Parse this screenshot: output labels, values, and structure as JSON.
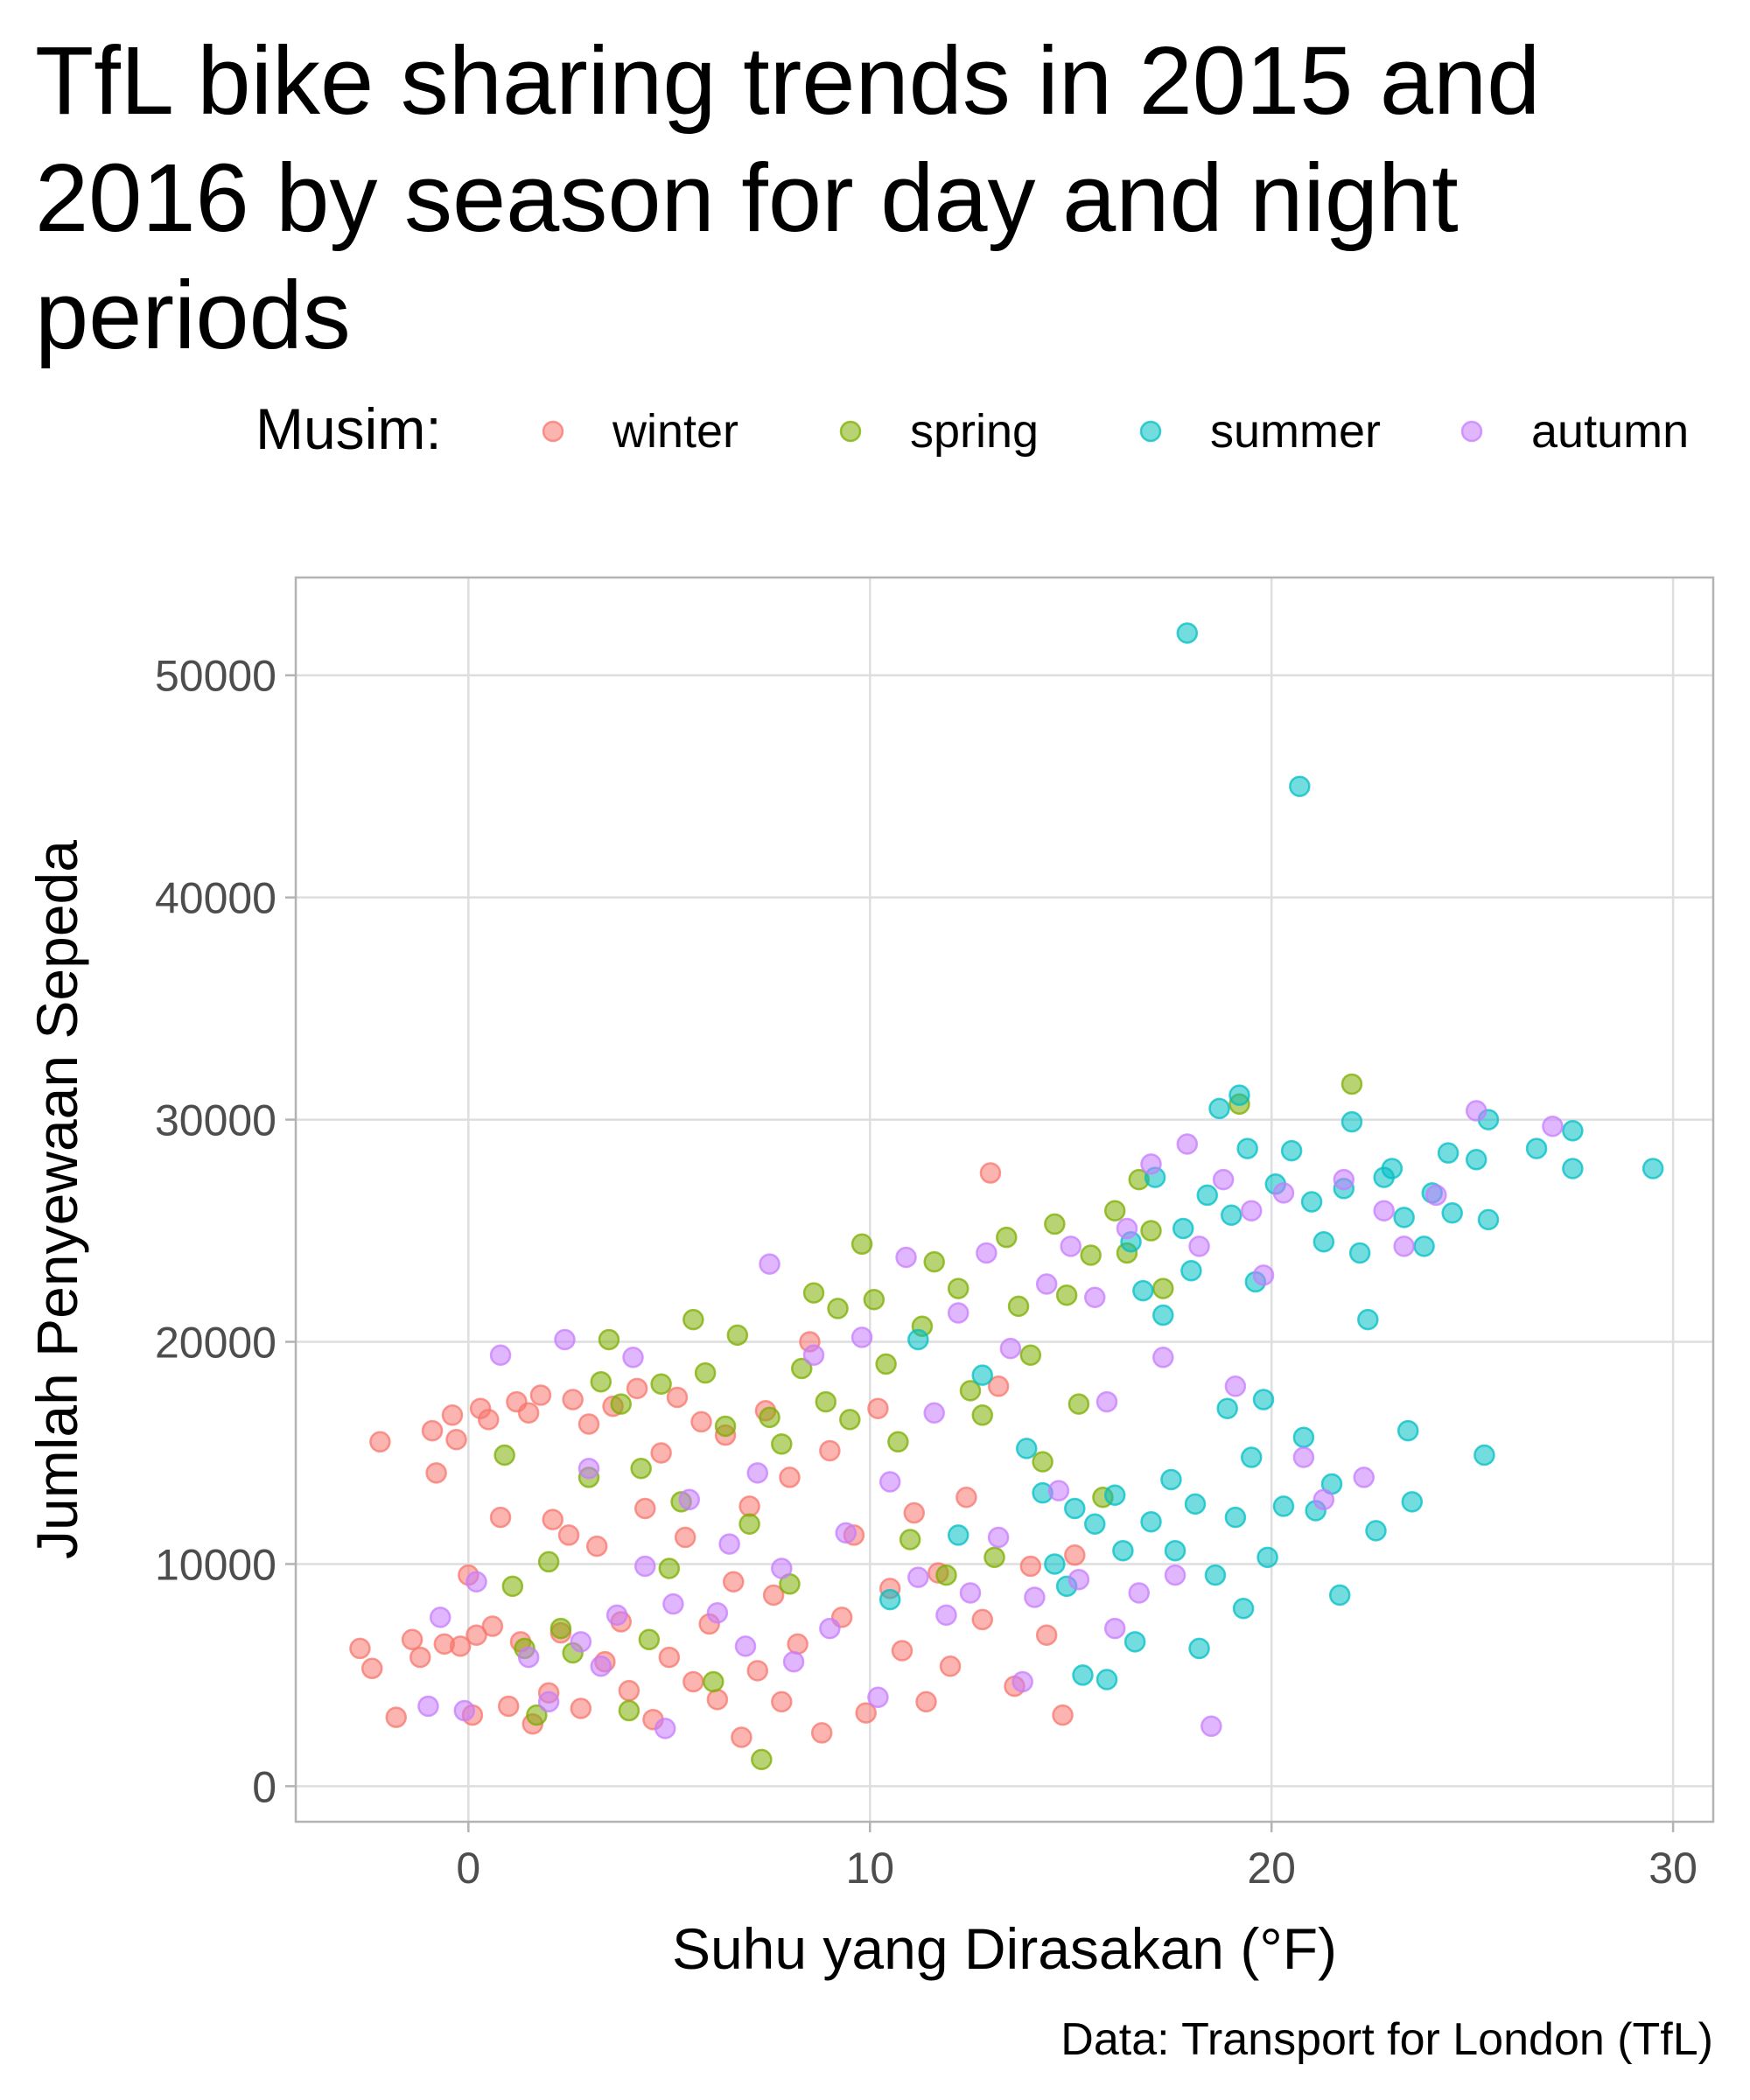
{
  "chart_data": {
    "type": "scatter",
    "title": "TfL bike sharing trends in 2015 and 2016 by season for day and night periods",
    "xlabel": "Suhu yang Dirasakan (°F)",
    "ylabel": "Jumlah Penyewaan Sepeda",
    "caption": "Data: Transport for London (TfL)",
    "legend_title": "Musim:",
    "legend_position": "top",
    "grid": true,
    "xlim": [
      -4.3,
      31.0
    ],
    "ylim": [
      -1600,
      54400
    ],
    "x_ticks": [
      0,
      10,
      20,
      30
    ],
    "y_ticks": [
      0,
      10000,
      20000,
      30000,
      40000,
      50000
    ],
    "x_tick_labels": [
      "0",
      "10",
      "20",
      "30"
    ],
    "y_tick_labels": [
      "0",
      "10000",
      "20000",
      "30000",
      "40000",
      "50000"
    ],
    "series": [
      {
        "name": "winter",
        "color": "#F8766D",
        "points": [
          [
            -2.7,
            6200
          ],
          [
            -2.4,
            5300
          ],
          [
            -2.2,
            15500
          ],
          [
            -1.8,
            3100
          ],
          [
            -1.4,
            6600
          ],
          [
            -1.2,
            5800
          ],
          [
            -0.9,
            16000
          ],
          [
            -0.8,
            14100
          ],
          [
            -0.6,
            6400
          ],
          [
            -0.4,
            16700
          ],
          [
            -0.3,
            15600
          ],
          [
            -0.2,
            6300
          ],
          [
            0.0,
            9500
          ],
          [
            0.1,
            3200
          ],
          [
            0.2,
            6800
          ],
          [
            0.3,
            17000
          ],
          [
            0.5,
            16500
          ],
          [
            0.6,
            7200
          ],
          [
            0.8,
            12100
          ],
          [
            1.0,
            3600
          ],
          [
            1.2,
            17300
          ],
          [
            1.3,
            6500
          ],
          [
            1.5,
            16800
          ],
          [
            1.6,
            2800
          ],
          [
            1.8,
            17600
          ],
          [
            2.0,
            4200
          ],
          [
            2.1,
            12000
          ],
          [
            2.3,
            6900
          ],
          [
            2.5,
            11300
          ],
          [
            2.6,
            17400
          ],
          [
            2.8,
            3500
          ],
          [
            3.0,
            16300
          ],
          [
            3.2,
            10800
          ],
          [
            3.4,
            5600
          ],
          [
            3.6,
            17100
          ],
          [
            3.8,
            7400
          ],
          [
            4.0,
            4300
          ],
          [
            4.2,
            17900
          ],
          [
            4.4,
            12500
          ],
          [
            4.6,
            3000
          ],
          [
            4.8,
            15000
          ],
          [
            5.0,
            5800
          ],
          [
            5.2,
            17500
          ],
          [
            5.4,
            11200
          ],
          [
            5.6,
            4700
          ],
          [
            5.8,
            16400
          ],
          [
            6.0,
            7300
          ],
          [
            6.2,
            3900
          ],
          [
            6.4,
            15800
          ],
          [
            6.6,
            9200
          ],
          [
            6.8,
            2200
          ],
          [
            7.0,
            12600
          ],
          [
            7.2,
            5200
          ],
          [
            7.4,
            16900
          ],
          [
            7.6,
            8600
          ],
          [
            7.8,
            3800
          ],
          [
            8.0,
            13900
          ],
          [
            8.2,
            6400
          ],
          [
            8.5,
            20000
          ],
          [
            8.8,
            2400
          ],
          [
            9.0,
            15100
          ],
          [
            9.3,
            7600
          ],
          [
            9.6,
            11300
          ],
          [
            9.9,
            3300
          ],
          [
            10.2,
            17000
          ],
          [
            10.5,
            8900
          ],
          [
            10.8,
            6100
          ],
          [
            11.1,
            12300
          ],
          [
            11.4,
            3800
          ],
          [
            11.7,
            9600
          ],
          [
            12.0,
            5400
          ],
          [
            12.4,
            13000
          ],
          [
            12.8,
            7500
          ],
          [
            13.0,
            27600
          ],
          [
            13.2,
            18000
          ],
          [
            13.6,
            4500
          ],
          [
            14.0,
            9900
          ],
          [
            14.4,
            6800
          ],
          [
            14.8,
            3200
          ],
          [
            15.1,
            10400
          ]
        ]
      },
      {
        "name": "spring",
        "color": "#7CAE00",
        "points": [
          [
            0.9,
            14900
          ],
          [
            1.1,
            9000
          ],
          [
            1.4,
            6200
          ],
          [
            1.7,
            3200
          ],
          [
            2.0,
            10100
          ],
          [
            2.3,
            7100
          ],
          [
            2.6,
            6000
          ],
          [
            3.0,
            13900
          ],
          [
            3.3,
            18200
          ],
          [
            3.5,
            20100
          ],
          [
            3.8,
            17200
          ],
          [
            4.0,
            3400
          ],
          [
            4.3,
            14300
          ],
          [
            4.5,
            6600
          ],
          [
            4.8,
            18100
          ],
          [
            5.0,
            9800
          ],
          [
            5.3,
            12800
          ],
          [
            5.6,
            21000
          ],
          [
            5.9,
            18600
          ],
          [
            6.1,
            4700
          ],
          [
            6.4,
            16200
          ],
          [
            6.7,
            20300
          ],
          [
            7.0,
            11800
          ],
          [
            7.3,
            1200
          ],
          [
            7.5,
            16600
          ],
          [
            7.8,
            15400
          ],
          [
            8.0,
            9100
          ],
          [
            8.3,
            18800
          ],
          [
            8.6,
            22200
          ],
          [
            8.9,
            17300
          ],
          [
            9.2,
            21500
          ],
          [
            9.5,
            16500
          ],
          [
            9.8,
            24400
          ],
          [
            10.1,
            21900
          ],
          [
            10.4,
            19000
          ],
          [
            10.7,
            15500
          ],
          [
            11.0,
            11100
          ],
          [
            11.3,
            20700
          ],
          [
            11.6,
            23600
          ],
          [
            11.9,
            9500
          ],
          [
            12.2,
            22400
          ],
          [
            12.5,
            17800
          ],
          [
            12.8,
            16700
          ],
          [
            13.1,
            10300
          ],
          [
            13.4,
            24700
          ],
          [
            13.7,
            21600
          ],
          [
            14.0,
            19400
          ],
          [
            14.3,
            14600
          ],
          [
            14.6,
            25300
          ],
          [
            14.9,
            22100
          ],
          [
            15.2,
            17200
          ],
          [
            15.5,
            23900
          ],
          [
            15.8,
            13000
          ],
          [
            16.1,
            25900
          ],
          [
            16.4,
            24000
          ],
          [
            16.7,
            27300
          ],
          [
            17.0,
            25000
          ],
          [
            17.3,
            22400
          ],
          [
            19.2,
            30700
          ],
          [
            22.0,
            31600
          ]
        ]
      },
      {
        "name": "summer",
        "color": "#00BFC4",
        "points": [
          [
            10.5,
            8400
          ],
          [
            11.2,
            20100
          ],
          [
            12.2,
            11300
          ],
          [
            12.8,
            18500
          ],
          [
            13.9,
            15200
          ],
          [
            14.3,
            13200
          ],
          [
            14.6,
            10000
          ],
          [
            14.9,
            9000
          ],
          [
            15.1,
            12500
          ],
          [
            15.3,
            5000
          ],
          [
            15.6,
            11800
          ],
          [
            15.9,
            4800
          ],
          [
            16.1,
            13100
          ],
          [
            16.3,
            10600
          ],
          [
            16.5,
            24500
          ],
          [
            16.6,
            6500
          ],
          [
            16.8,
            22300
          ],
          [
            17.0,
            11900
          ],
          [
            17.1,
            27400
          ],
          [
            17.3,
            21200
          ],
          [
            17.5,
            13800
          ],
          [
            17.6,
            10600
          ],
          [
            17.8,
            25100
          ],
          [
            17.9,
            51900
          ],
          [
            18.0,
            23200
          ],
          [
            18.1,
            12700
          ],
          [
            18.2,
            6200
          ],
          [
            18.4,
            26600
          ],
          [
            18.6,
            9500
          ],
          [
            18.7,
            30500
          ],
          [
            18.9,
            17000
          ],
          [
            19.0,
            25700
          ],
          [
            19.1,
            12100
          ],
          [
            19.2,
            31100
          ],
          [
            19.3,
            8000
          ],
          [
            19.4,
            28700
          ],
          [
            19.5,
            14800
          ],
          [
            19.6,
            22700
          ],
          [
            19.8,
            17400
          ],
          [
            19.9,
            10300
          ],
          [
            20.1,
            27100
          ],
          [
            20.3,
            12600
          ],
          [
            20.5,
            28600
          ],
          [
            20.7,
            45000
          ],
          [
            20.8,
            15700
          ],
          [
            21.0,
            26300
          ],
          [
            21.1,
            12400
          ],
          [
            21.3,
            24500
          ],
          [
            21.5,
            13600
          ],
          [
            21.7,
            8600
          ],
          [
            21.8,
            26900
          ],
          [
            22.0,
            29900
          ],
          [
            22.2,
            24000
          ],
          [
            22.4,
            21000
          ],
          [
            22.6,
            11500
          ],
          [
            22.8,
            27400
          ],
          [
            23.0,
            27800
          ],
          [
            23.3,
            25600
          ],
          [
            23.4,
            16000
          ],
          [
            23.5,
            12800
          ],
          [
            23.8,
            24300
          ],
          [
            24.0,
            26700
          ],
          [
            24.4,
            28500
          ],
          [
            24.5,
            25800
          ],
          [
            25.1,
            28200
          ],
          [
            25.3,
            14900
          ],
          [
            25.4,
            30000
          ],
          [
            25.4,
            25500
          ],
          [
            26.6,
            28700
          ],
          [
            27.5,
            29500
          ],
          [
            27.5,
            27800
          ],
          [
            29.5,
            27800
          ]
        ]
      },
      {
        "name": "autumn",
        "color": "#C77CFF",
        "points": [
          [
            -1.0,
            3600
          ],
          [
            -0.7,
            7600
          ],
          [
            -0.1,
            3400
          ],
          [
            0.2,
            9200
          ],
          [
            0.8,
            19400
          ],
          [
            1.5,
            5800
          ],
          [
            2.0,
            3800
          ],
          [
            2.4,
            20100
          ],
          [
            2.8,
            6500
          ],
          [
            3.0,
            14300
          ],
          [
            3.3,
            5400
          ],
          [
            3.7,
            7700
          ],
          [
            4.1,
            19300
          ],
          [
            4.4,
            9900
          ],
          [
            4.9,
            2600
          ],
          [
            5.1,
            8200
          ],
          [
            5.5,
            12900
          ],
          [
            6.2,
            7800
          ],
          [
            6.5,
            10900
          ],
          [
            6.9,
            6300
          ],
          [
            7.2,
            14100
          ],
          [
            7.5,
            23500
          ],
          [
            7.8,
            9800
          ],
          [
            8.1,
            5600
          ],
          [
            8.6,
            19400
          ],
          [
            9.0,
            7100
          ],
          [
            9.4,
            11400
          ],
          [
            9.8,
            20200
          ],
          [
            10.2,
            4000
          ],
          [
            10.5,
            13700
          ],
          [
            10.9,
            23800
          ],
          [
            11.2,
            9400
          ],
          [
            11.6,
            16800
          ],
          [
            11.9,
            7700
          ],
          [
            12.2,
            21300
          ],
          [
            12.5,
            8700
          ],
          [
            12.9,
            24000
          ],
          [
            13.2,
            11200
          ],
          [
            13.5,
            19700
          ],
          [
            13.8,
            4700
          ],
          [
            14.1,
            8500
          ],
          [
            14.4,
            22600
          ],
          [
            14.7,
            13300
          ],
          [
            15.0,
            24300
          ],
          [
            15.2,
            9300
          ],
          [
            15.6,
            22000
          ],
          [
            15.9,
            17300
          ],
          [
            16.1,
            7100
          ],
          [
            16.4,
            25100
          ],
          [
            16.7,
            8700
          ],
          [
            17.0,
            28000
          ],
          [
            17.3,
            19300
          ],
          [
            17.6,
            9500
          ],
          [
            17.9,
            28900
          ],
          [
            18.2,
            24300
          ],
          [
            18.5,
            2700
          ],
          [
            18.8,
            27300
          ],
          [
            19.1,
            18000
          ],
          [
            19.5,
            25900
          ],
          [
            19.8,
            23000
          ],
          [
            20.3,
            26700
          ],
          [
            20.8,
            14800
          ],
          [
            21.3,
            12900
          ],
          [
            21.8,
            27300
          ],
          [
            22.3,
            13900
          ],
          [
            22.8,
            25900
          ],
          [
            23.3,
            24300
          ],
          [
            24.1,
            26600
          ],
          [
            25.1,
            30400
          ],
          [
            27.0,
            29700
          ]
        ]
      }
    ]
  }
}
